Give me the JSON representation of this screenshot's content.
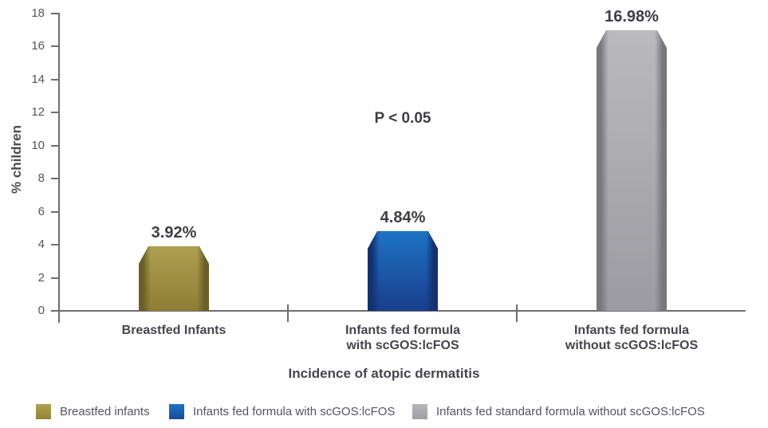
{
  "chart_data": {
    "type": "bar",
    "title": "",
    "ylabel": "% children",
    "xlabel": "Incidence of atopic dermatitis",
    "ylim": [
      0,
      18
    ],
    "ytick_step": 2,
    "grid": false,
    "legend_position": "bottom",
    "annotation": {
      "text": "P < 0.05",
      "anchor_category_index": 1
    },
    "categories": [
      "Breastfed Infants",
      "Infants fed formula with scGOS:lcFOS",
      "Infants fed formula without scGOS:lcFOS"
    ],
    "values": [
      3.92,
      4.84,
      16.98
    ],
    "bars": [
      {
        "name": "breastfed-infants",
        "label_lines": [
          "Breastfed Infants"
        ],
        "value": 3.92,
        "value_label": "3.92%",
        "color_top": "#AF9F51",
        "color_bottom": "#8E7E35",
        "color_edge": "#6A5F26"
      },
      {
        "name": "formula-with-scgos-lcfos",
        "label_lines": [
          "Infants fed formula",
          "with scGOS:lcFOS"
        ],
        "value": 4.84,
        "value_label": "4.84%",
        "color_top": "#1D73C4",
        "color_bottom": "#1A3E8C",
        "color_edge": "#13316E"
      },
      {
        "name": "formula-without-scgos-lcfos",
        "label_lines": [
          "Infants fed formula",
          "without scGOS:lcFOS"
        ],
        "value": 16.98,
        "value_label": "16.98%",
        "color_top": "#BABABE",
        "color_bottom": "#9B9BA1",
        "color_edge": "#77777D"
      }
    ],
    "legend": [
      {
        "label": "Breastfed infants",
        "color_top": "#B0A052",
        "color_bottom": "#948438"
      },
      {
        "label": "Infants fed formula with scGOS:lcFOS",
        "color_top": "#1E74C5",
        "color_bottom": "#1A4B9A"
      },
      {
        "label": "Infants fed standard formula without scGOS:lcFOS",
        "color_top": "#B6B6BA",
        "color_bottom": "#9E9EA4"
      }
    ]
  }
}
